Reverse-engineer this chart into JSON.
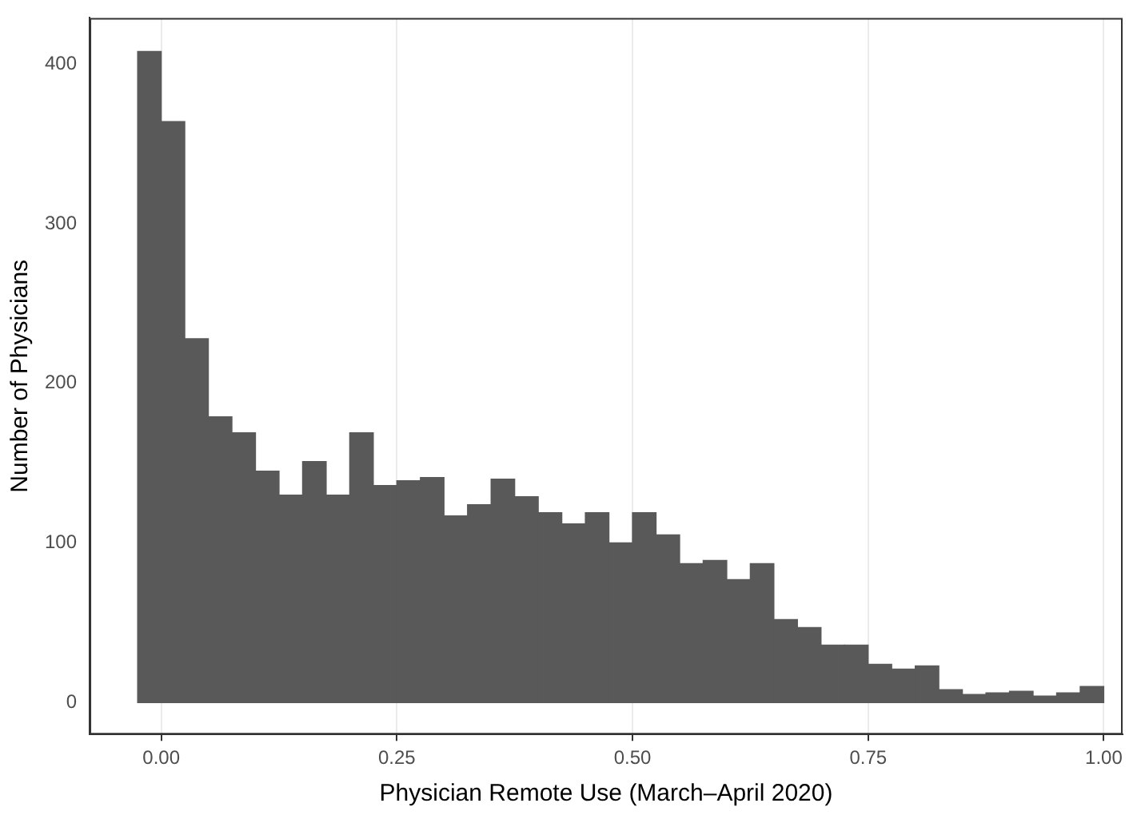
{
  "chart_data": {
    "type": "histogram",
    "xlabel": "Physician Remote Use (March–April 2020)",
    "ylabel": "Number of Physicians",
    "bins": [
      -0.025,
      0,
      0.025,
      0.05,
      0.075,
      0.1,
      0.125,
      0.15,
      0.175,
      0.2,
      0.225,
      0.25,
      0.275,
      0.3,
      0.325,
      0.35,
      0.375,
      0.4,
      0.425,
      0.45,
      0.475,
      0.5,
      0.525,
      0.55,
      0.575,
      0.6,
      0.625,
      0.65,
      0.675,
      0.7,
      0.725,
      0.75,
      0.775,
      0.8,
      0.825,
      0.85,
      0.875,
      0.9,
      0.925,
      0.95,
      0.975,
      1.0
    ],
    "values": [
      408,
      364,
      228,
      179,
      169,
      145,
      130,
      151,
      130,
      169,
      136,
      139,
      141,
      117,
      124,
      140,
      129,
      119,
      112,
      119,
      100,
      119,
      105,
      87,
      89,
      77,
      87,
      52,
      47,
      36,
      36,
      24,
      21,
      23,
      8,
      5,
      6,
      7,
      4,
      6,
      10
    ],
    "color": "#595959",
    "xlim": [
      -0.076,
      1.02
    ],
    "xticks": [
      {
        "value": 0,
        "label": "0.00"
      },
      0.25,
      {
        "value": 0.5,
        "label": "0.50"
      },
      0.75,
      {
        "value": 1,
        "label": "1.00"
      }
    ],
    "ylim": [
      -20,
      429
    ],
    "yticks": [
      0,
      100,
      200,
      300,
      400
    ],
    "grid": "x",
    "legend": false
  }
}
